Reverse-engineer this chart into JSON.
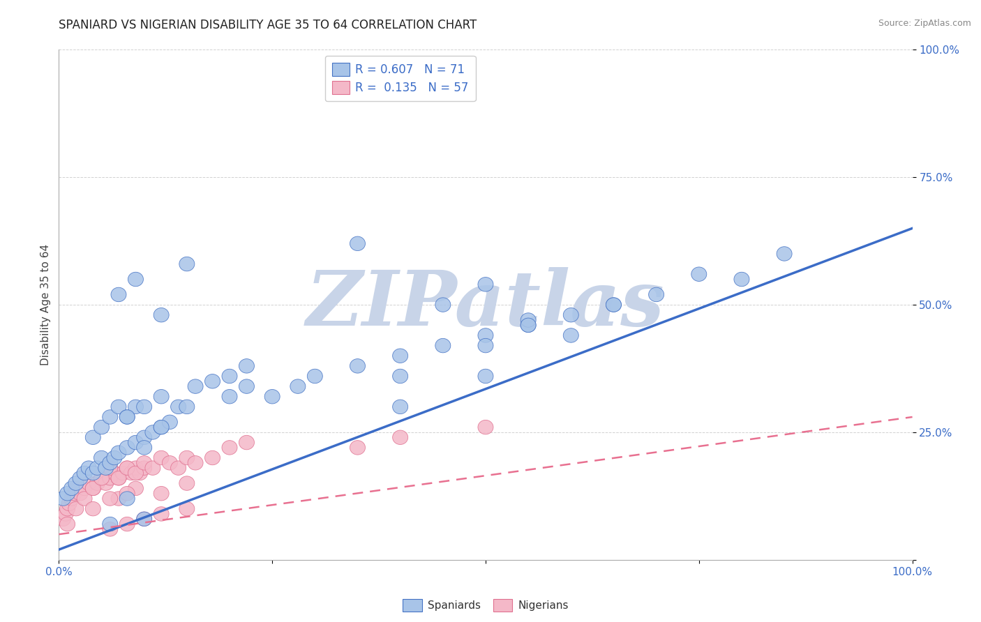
{
  "title": "SPANIARD VS NIGERIAN DISABILITY AGE 35 TO 64 CORRELATION CHART",
  "source": "Source: ZipAtlas.com",
  "ylabel": "Disability Age 35 to 64",
  "R_blue": 0.607,
  "N_blue": 71,
  "R_pink": 0.135,
  "N_pink": 57,
  "color_blue_fill": "#a8c4e8",
  "color_blue_edge": "#4472c4",
  "color_pink_fill": "#f4b8c8",
  "color_pink_edge": "#e07090",
  "color_blue_line": "#3b6cc7",
  "color_pink_line": "#e87090",
  "watermark": "ZIPatlas",
  "watermark_color": "#c8d4e8",
  "xlim": [
    0,
    1
  ],
  "ylim": [
    0,
    1
  ],
  "xticks": [
    0.0,
    0.25,
    0.5,
    0.75,
    1.0
  ],
  "yticks": [
    0.0,
    0.25,
    0.5,
    0.75,
    1.0
  ],
  "xtick_labels": [
    "0.0%",
    "",
    "",
    "",
    "100.0%"
  ],
  "ytick_labels": [
    "",
    "25.0%",
    "50.0%",
    "75.0%",
    "100.0%"
  ],
  "blue_line_x": [
    0.0,
    1.0
  ],
  "blue_line_y": [
    0.02,
    0.65
  ],
  "pink_line_x": [
    0.0,
    1.0
  ],
  "pink_line_y": [
    0.05,
    0.28
  ],
  "spaniard_x": [
    0.005,
    0.01,
    0.015,
    0.02,
    0.025,
    0.03,
    0.035,
    0.04,
    0.045,
    0.05,
    0.055,
    0.06,
    0.065,
    0.07,
    0.08,
    0.09,
    0.1,
    0.11,
    0.12,
    0.13,
    0.04,
    0.05,
    0.06,
    0.07,
    0.08,
    0.09,
    0.1,
    0.12,
    0.14,
    0.16,
    0.18,
    0.2,
    0.22,
    0.25,
    0.28,
    0.3,
    0.15,
    0.2,
    0.22,
    0.08,
    0.1,
    0.12,
    0.35,
    0.4,
    0.45,
    0.5,
    0.55,
    0.6,
    0.65,
    0.7,
    0.4,
    0.5,
    0.55,
    0.6,
    0.4,
    0.5,
    0.65,
    0.75,
    0.8,
    0.85,
    0.07,
    0.09,
    0.12,
    0.15,
    0.35,
    0.45,
    0.5,
    0.55,
    0.06,
    0.08,
    0.1
  ],
  "spaniard_y": [
    0.12,
    0.13,
    0.14,
    0.15,
    0.16,
    0.17,
    0.18,
    0.17,
    0.18,
    0.2,
    0.18,
    0.19,
    0.2,
    0.21,
    0.22,
    0.23,
    0.24,
    0.25,
    0.26,
    0.27,
    0.24,
    0.26,
    0.28,
    0.3,
    0.28,
    0.3,
    0.22,
    0.26,
    0.3,
    0.34,
    0.35,
    0.36,
    0.38,
    0.32,
    0.34,
    0.36,
    0.3,
    0.32,
    0.34,
    0.28,
    0.3,
    0.32,
    0.38,
    0.4,
    0.42,
    0.44,
    0.46,
    0.48,
    0.5,
    0.52,
    0.36,
    0.42,
    0.47,
    0.44,
    0.3,
    0.36,
    0.5,
    0.56,
    0.55,
    0.6,
    0.52,
    0.55,
    0.48,
    0.58,
    0.62,
    0.5,
    0.54,
    0.46,
    0.07,
    0.12,
    0.08
  ],
  "nigerian_x": [
    0.005,
    0.008,
    0.01,
    0.012,
    0.015,
    0.018,
    0.02,
    0.025,
    0.03,
    0.035,
    0.04,
    0.045,
    0.05,
    0.055,
    0.06,
    0.065,
    0.07,
    0.075,
    0.08,
    0.085,
    0.09,
    0.095,
    0.1,
    0.01,
    0.02,
    0.03,
    0.04,
    0.05,
    0.06,
    0.07,
    0.08,
    0.09,
    0.1,
    0.11,
    0.12,
    0.13,
    0.14,
    0.15,
    0.16,
    0.18,
    0.2,
    0.22,
    0.07,
    0.09,
    0.12,
    0.15,
    0.04,
    0.06,
    0.08,
    0.35,
    0.4,
    0.5,
    0.1,
    0.12,
    0.15,
    0.08,
    0.06
  ],
  "nigerian_y": [
    0.08,
    0.09,
    0.1,
    0.11,
    0.12,
    0.13,
    0.14,
    0.13,
    0.14,
    0.15,
    0.14,
    0.15,
    0.16,
    0.15,
    0.16,
    0.17,
    0.16,
    0.17,
    0.18,
    0.17,
    0.18,
    0.17,
    0.18,
    0.07,
    0.1,
    0.12,
    0.14,
    0.16,
    0.18,
    0.16,
    0.18,
    0.17,
    0.19,
    0.18,
    0.2,
    0.19,
    0.18,
    0.2,
    0.19,
    0.2,
    0.22,
    0.23,
    0.12,
    0.14,
    0.13,
    0.15,
    0.1,
    0.12,
    0.13,
    0.22,
    0.24,
    0.26,
    0.08,
    0.09,
    0.1,
    0.07,
    0.06
  ]
}
